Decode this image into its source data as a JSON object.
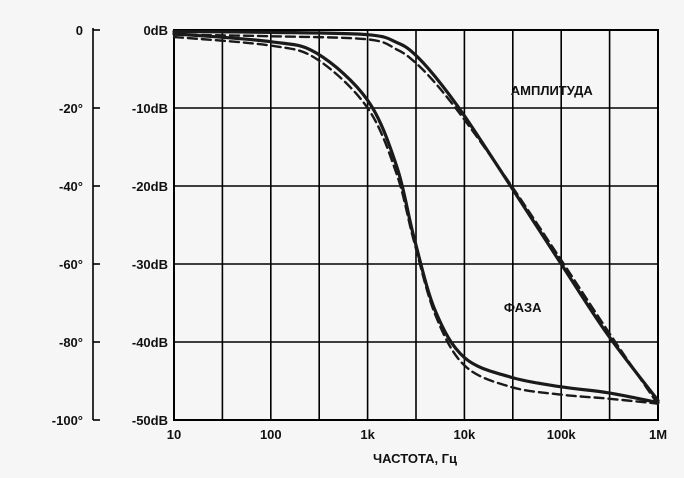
{
  "chart_data": {
    "type": "line",
    "xlabel": "ЧАСТОТА, Гц",
    "x_scale": "log",
    "xlim": [
      10,
      1000000
    ],
    "x_ticks": [
      {
        "value": 10,
        "label": "10"
      },
      {
        "value": 100,
        "label": "100"
      },
      {
        "value": 1000,
        "label": "1k"
      },
      {
        "value": 10000,
        "label": "10k"
      },
      {
        "value": 100000,
        "label": "100k"
      },
      {
        "value": 1000000,
        "label": "1M"
      }
    ],
    "y_left": {
      "unit": "degrees",
      "ylim": [
        -100,
        0
      ],
      "ticks": [
        {
          "value": 0,
          "label": "0"
        },
        {
          "value": -20,
          "label": "-20°"
        },
        {
          "value": -40,
          "label": "-40°"
        },
        {
          "value": -60,
          "label": "-60°"
        },
        {
          "value": -80,
          "label": "-80°"
        },
        {
          "value": -100,
          "label": "-100°"
        }
      ]
    },
    "y_right": {
      "unit": "dB",
      "ylim": [
        -50,
        0
      ],
      "ticks": [
        {
          "value": 0,
          "label": "0dB"
        },
        {
          "value": -10,
          "label": "-10dB"
        },
        {
          "value": -20,
          "label": "-20dB"
        },
        {
          "value": -30,
          "label": "-30dB"
        },
        {
          "value": -40,
          "label": "-40dB"
        },
        {
          "value": -50,
          "label": "-50dB"
        }
      ]
    },
    "grid": true,
    "series": [
      {
        "name": "АМПЛИТУДА",
        "axis": "dB",
        "style": "solid",
        "x": [
          10,
          100,
          1000,
          2000,
          3000,
          5000,
          10000,
          30000,
          100000,
          300000,
          1000000
        ],
        "y": [
          -0.2,
          -0.3,
          -0.6,
          -1.6,
          -3.0,
          -6.0,
          -11.0,
          -20.0,
          -30.0,
          -39.0,
          -47.5
        ]
      },
      {
        "name": "АМПЛИТУДА",
        "axis": "dB",
        "style": "dashed",
        "x": [
          10,
          100,
          1000,
          2000,
          3000,
          5000,
          10000,
          30000,
          100000,
          300000,
          1000000
        ],
        "y": [
          -0.6,
          -0.8,
          -1.2,
          -2.5,
          -4.0,
          -6.8,
          -11.5,
          -19.8,
          -29.5,
          -38.5,
          -48.0
        ]
      },
      {
        "name": "ФАЗА",
        "axis": "degrees",
        "style": "solid",
        "x": [
          10,
          100,
          300,
          1000,
          2000,
          3000,
          5000,
          10000,
          30000,
          100000,
          300000,
          1000000
        ],
        "y": [
          -1.0,
          -3.0,
          -6.0,
          -18.0,
          -35.0,
          -53.0,
          -72.0,
          -84.0,
          -89.0,
          -91.5,
          -93.0,
          -95.5
        ]
      },
      {
        "name": "ФАЗА",
        "axis": "degrees",
        "style": "dashed",
        "x": [
          10,
          100,
          300,
          1000,
          2000,
          3000,
          5000,
          10000,
          30000,
          100000,
          300000,
          1000000
        ],
        "y": [
          -1.8,
          -4.0,
          -7.5,
          -20.0,
          -37.0,
          -54.0,
          -73.0,
          -86.0,
          -91.5,
          -93.5,
          -94.5,
          -95.8
        ]
      }
    ],
    "annotations": [
      {
        "text": "АМПЛИТУДА",
        "x": 80000,
        "y_db": -7.7
      },
      {
        "text": "ФАЗА",
        "x": 40000,
        "y_db": -35.5
      }
    ],
    "colors": {
      "line": "#1a1a1a",
      "grid": "#000000",
      "background": "#f6f6f6"
    }
  }
}
